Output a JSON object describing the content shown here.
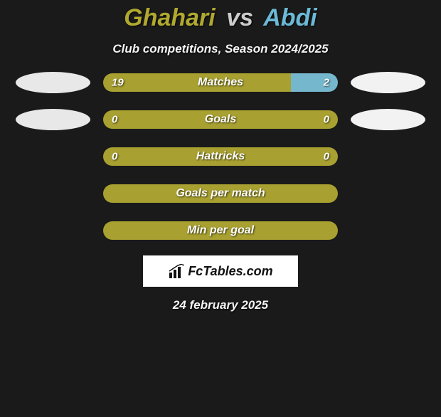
{
  "title": {
    "player1": "Ghahari",
    "vs": "vs",
    "player2": "Abdi",
    "color_p1": "#b0a92f",
    "color_vs": "#cccccc",
    "color_p2": "#6bb9d6"
  },
  "subtitle": "Club competitions, Season 2024/2025",
  "colors": {
    "bg": "#1a1a1a",
    "bar_p1": "#a8a030",
    "bar_p2": "#75b7cc",
    "bar_empty": "#a8a030",
    "ellipse_left": "#e8e8e8",
    "ellipse_right": "#f2f2f2",
    "text": "#ffffff"
  },
  "bars": [
    {
      "label": "Matches",
      "left_val": "19",
      "right_val": "2",
      "left_pct": 80,
      "right_pct": 20,
      "left_color": "#a8a030",
      "right_color": "#75b7cc",
      "show_left_ellipse": true,
      "show_right_ellipse": true
    },
    {
      "label": "Goals",
      "left_val": "0",
      "right_val": "0",
      "left_pct": 100,
      "right_pct": 0,
      "left_color": "#a8a030",
      "right_color": "#75b7cc",
      "show_left_ellipse": true,
      "show_right_ellipse": true
    },
    {
      "label": "Hattricks",
      "left_val": "0",
      "right_val": "0",
      "left_pct": 100,
      "right_pct": 0,
      "left_color": "#a8a030",
      "right_color": "#75b7cc",
      "show_left_ellipse": false,
      "show_right_ellipse": false
    },
    {
      "label": "Goals per match",
      "left_val": "",
      "right_val": "",
      "left_pct": 100,
      "right_pct": 0,
      "left_color": "#a8a030",
      "right_color": "#75b7cc",
      "show_left_ellipse": false,
      "show_right_ellipse": false
    },
    {
      "label": "Min per goal",
      "left_val": "",
      "right_val": "",
      "left_pct": 100,
      "right_pct": 0,
      "left_color": "#a8a030",
      "right_color": "#75b7cc",
      "show_left_ellipse": false,
      "show_right_ellipse": false
    }
  ],
  "logo": {
    "text": "FcTables.com"
  },
  "date": "24 february 2025"
}
